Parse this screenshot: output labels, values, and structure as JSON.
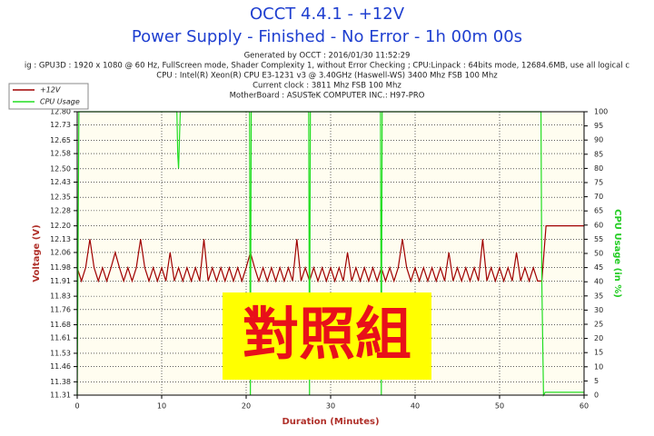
{
  "chart_data": {
    "type": "line",
    "title": "OCCT 4.4.1 - +12V",
    "subtitle": "Power Supply - Finished - No Error - 1h 00m 00s",
    "info": [
      "Generated by OCCT : 2016/01/30 11:52:29",
      "ig : GPU3D : 1920 x 1080 @ 60 Hz, FullScreen mode, Shader Complexity 1, without Error Checking ; CPU:Linpack : 64bits mode, 12684.6MB, use all logical c",
      "CPU : Intel(R) Xeon(R) CPU E3-1231 v3 @ 3.40GHz (Haswell-WS) 3400 Mhz FSB 100 Mhz",
      "Current clock : 3811 Mhz FSB 100 Mhz",
      "MotherBoard : ASUSTeK COMPUTER INC.: H97-PRO"
    ],
    "xlabel": "Duration (Minutes)",
    "ylabel": "Voltage (V)",
    "y2label": "CPU Usage (in %)",
    "annotation": "對照組",
    "xlim": [
      0,
      60
    ],
    "xticks": [
      0,
      10,
      20,
      30,
      40,
      50,
      60
    ],
    "ylim": [
      11.31,
      12.8
    ],
    "yticks": [
      11.31,
      11.38,
      11.46,
      11.53,
      11.61,
      11.68,
      11.76,
      11.83,
      11.91,
      11.98,
      12.06,
      12.13,
      {
        "value": 12.2,
        "label": "12.20"
      },
      12.28,
      12.35,
      12.43,
      {
        "value": 12.5,
        "label": "12.50"
      },
      12.58,
      12.65,
      12.73,
      {
        "value": 12.8,
        "label": "12.80"
      }
    ],
    "y2lim": [
      0,
      100
    ],
    "y2ticks": [
      0,
      5,
      10,
      15,
      20,
      25,
      30,
      35,
      40,
      45,
      50,
      55,
      60,
      65,
      70,
      75,
      80,
      85,
      90,
      95,
      100
    ],
    "grid": true,
    "legend": "top-left",
    "series": [
      {
        "name": "+12V",
        "color": "#a00000",
        "x": [
          0,
          0.5,
          1,
          1.5,
          2,
          2.5,
          3,
          3.5,
          4,
          4.5,
          5,
          5.5,
          6,
          6.5,
          7,
          7.5,
          8,
          8.5,
          9,
          9.5,
          10,
          10.5,
          11,
          11.5,
          12,
          12.5,
          13,
          13.5,
          14,
          14.5,
          15,
          15.5,
          16,
          16.5,
          17,
          17.5,
          18,
          18.5,
          19,
          19.5,
          20,
          20.5,
          21,
          21.5,
          22,
          22.5,
          23,
          23.5,
          24,
          24.5,
          25,
          25.5,
          26,
          26.5,
          27,
          27.5,
          28,
          28.5,
          29,
          29.5,
          30,
          30.5,
          31,
          31.5,
          32,
          32.5,
          33,
          33.5,
          34,
          34.5,
          35,
          35.5,
          36,
          36.5,
          37,
          37.5,
          38,
          38.5,
          39,
          39.5,
          40,
          40.5,
          41,
          41.5,
          42,
          42.5,
          43,
          43.5,
          44,
          44.5,
          45,
          45.5,
          46,
          46.5,
          47,
          47.5,
          48,
          48.5,
          49,
          49.5,
          50,
          50.5,
          51,
          51.5,
          52,
          52.5,
          53,
          53.5,
          54,
          54.5,
          55,
          55.5,
          56,
          56.5,
          57,
          57.5,
          58,
          58.5,
          59,
          59.5,
          60
        ],
        "values": [
          11.98,
          11.91,
          11.98,
          12.13,
          11.98,
          11.91,
          11.98,
          11.91,
          11.98,
          12.06,
          11.98,
          11.91,
          11.98,
          11.91,
          11.98,
          12.13,
          11.98,
          11.91,
          11.98,
          11.91,
          11.98,
          11.91,
          12.06,
          11.91,
          11.98,
          11.91,
          11.98,
          11.91,
          11.98,
          11.91,
          12.13,
          11.91,
          11.98,
          11.91,
          11.98,
          11.91,
          11.98,
          11.91,
          11.98,
          11.91,
          11.98,
          12.06,
          11.98,
          11.91,
          11.98,
          11.91,
          11.98,
          11.91,
          11.98,
          11.91,
          11.98,
          11.91,
          12.13,
          11.91,
          11.98,
          11.91,
          11.98,
          11.91,
          11.98,
          11.91,
          11.98,
          11.91,
          11.98,
          11.91,
          12.06,
          11.91,
          11.98,
          11.91,
          11.98,
          11.91,
          11.98,
          11.91,
          11.98,
          11.91,
          11.98,
          11.91,
          11.98,
          12.13,
          11.98,
          11.91,
          11.98,
          11.91,
          11.98,
          11.91,
          11.98,
          11.91,
          11.98,
          11.91,
          12.06,
          11.91,
          11.98,
          11.91,
          11.98,
          11.91,
          11.98,
          11.91,
          12.13,
          11.91,
          11.98,
          11.91,
          11.98,
          11.91,
          11.98,
          11.91,
          12.06,
          11.91,
          11.98,
          11.91,
          11.98,
          11.91,
          11.91,
          12.2,
          12.2,
          12.2,
          12.2,
          12.2,
          12.2,
          12.2,
          12.2,
          12.2,
          12.2
        ]
      },
      {
        "name": "CPU Usage",
        "color": "#22dd22",
        "axis": "y2",
        "x": [
          0,
          0.1,
          0.2,
          11.8,
          11.9,
          12,
          12.1,
          12.2,
          20.4,
          20.5,
          20.6,
          27.4,
          27.5,
          27.6,
          35.9,
          36,
          36.1,
          54.9,
          55,
          55.2,
          55.4,
          60
        ],
        "values": [
          0,
          50,
          100,
          100,
          85,
          80,
          90,
          100,
          100,
          0,
          100,
          100,
          0,
          100,
          100,
          0,
          100,
          100,
          40,
          0,
          1,
          1
        ]
      }
    ]
  }
}
